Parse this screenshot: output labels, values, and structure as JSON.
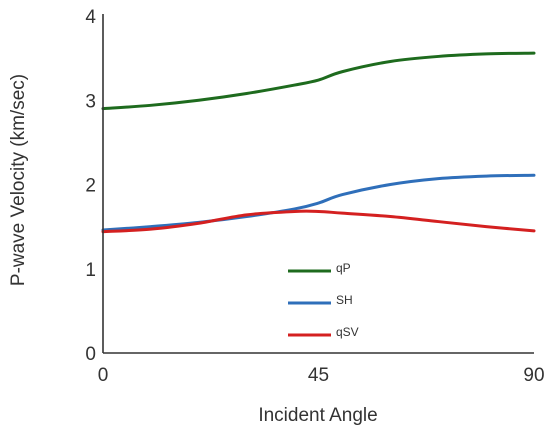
{
  "chart_data": {
    "type": "line",
    "xlabel": "Incident Angle",
    "ylabel": "P-wave Velocity (km/sec)",
    "xlim": [
      0,
      90
    ],
    "ylim": [
      0,
      4
    ],
    "xticks": [
      0,
      45,
      90
    ],
    "yticks": [
      0,
      1,
      2,
      3,
      4
    ],
    "grid": false,
    "legend_position": "lower-center",
    "series": [
      {
        "name": "qP",
        "color": "#1e6b1e",
        "x": [
          0,
          10,
          20,
          30,
          40,
          45,
          50,
          60,
          70,
          80,
          90
        ],
        "y": [
          2.9,
          2.94,
          3.0,
          3.08,
          3.18,
          3.24,
          3.34,
          3.46,
          3.52,
          3.55,
          3.56
        ]
      },
      {
        "name": "SH",
        "color": "#2f6fba",
        "x": [
          0,
          10,
          20,
          30,
          40,
          45,
          50,
          60,
          70,
          80,
          90
        ],
        "y": [
          1.46,
          1.5,
          1.55,
          1.62,
          1.71,
          1.78,
          1.88,
          2.0,
          2.07,
          2.1,
          2.11
        ]
      },
      {
        "name": "qSV",
        "color": "#d42020",
        "x": [
          0,
          10,
          20,
          30,
          40,
          45,
          50,
          60,
          70,
          80,
          90
        ],
        "y": [
          1.44,
          1.47,
          1.54,
          1.64,
          1.68,
          1.68,
          1.66,
          1.62,
          1.56,
          1.5,
          1.45
        ]
      }
    ]
  }
}
